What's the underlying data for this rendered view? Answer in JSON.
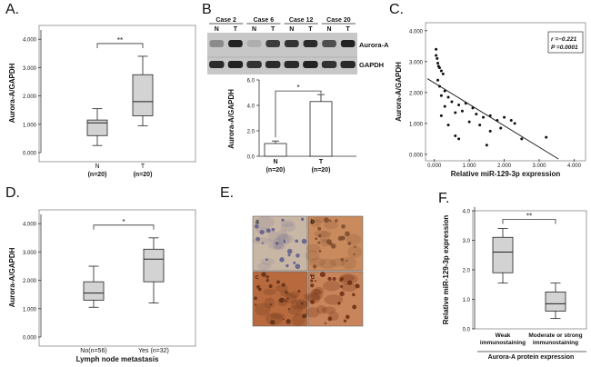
{
  "panels": {
    "A": {
      "letter": "A."
    },
    "B": {
      "letter": "B"
    },
    "C": {
      "letter": "C."
    },
    "D": {
      "letter": "D."
    },
    "E": {
      "letter": "E."
    },
    "F": {
      "letter": "F."
    }
  },
  "chart_data": [
    {
      "id": "A",
      "type": "box",
      "ylabel": "Aurora-A/GAPDH",
      "yticks": [
        "0.000",
        "1.000",
        "2.000",
        "3.000",
        "4.000"
      ],
      "ylim": [
        0,
        4.2
      ],
      "categories": [
        "N",
        "T"
      ],
      "category_sub": [
        "(n=20)",
        "(n=20)"
      ],
      "boxes": [
        {
          "min": 0.25,
          "q1": 0.6,
          "median": 1.05,
          "q3": 1.15,
          "max": 1.55
        },
        {
          "min": 0.95,
          "q1": 1.3,
          "median": 1.8,
          "q3": 2.75,
          "max": 3.4
        }
      ],
      "significance": "**"
    },
    {
      "id": "B",
      "type": "bar",
      "ylabel": "Aurora-A/GAPDH",
      "yticks": [
        "0.0",
        "2.0",
        "4.0",
        "6.0"
      ],
      "ylim": [
        0,
        6
      ],
      "categories": [
        "N",
        "T"
      ],
      "category_sub": [
        "(n=20)",
        "(n=20)"
      ],
      "values": [
        1.0,
        4.3
      ],
      "errors": [
        0.2,
        0.55
      ],
      "significance": "*"
    },
    {
      "id": "C",
      "type": "scatter",
      "xlabel": "Relative miR-129-3p expression",
      "ylabel": "Aurora-A/GAPDH",
      "xticks": [
        "0.000",
        "1.000",
        "2.000",
        "3.000",
        "4.000"
      ],
      "yticks": [
        "0.000",
        "1.000",
        "2.000",
        "3.000",
        "4.000"
      ],
      "xlim": [
        -0.2,
        4.3
      ],
      "ylim": [
        -0.15,
        4.2
      ],
      "annotation_r": "r =−0.221",
      "annotation_p": "P =0.0001",
      "fit_line": [
        [
          -0.2,
          2.45
        ],
        [
          3.55,
          -0.15
        ]
      ],
      "points": [
        [
          0.05,
          3.4
        ],
        [
          0.05,
          3.2
        ],
        [
          0.08,
          3.1
        ],
        [
          0.1,
          2.95
        ],
        [
          0.12,
          2.85
        ],
        [
          0.15,
          2.8
        ],
        [
          0.2,
          2.7
        ],
        [
          0.25,
          2.6
        ],
        [
          0.1,
          2.4
        ],
        [
          0.15,
          2.2
        ],
        [
          0.3,
          2.05
        ],
        [
          0.2,
          1.9
        ],
        [
          0.4,
          1.85
        ],
        [
          0.5,
          1.7
        ],
        [
          0.3,
          1.55
        ],
        [
          0.7,
          1.6
        ],
        [
          0.9,
          1.65
        ],
        [
          0.6,
          1.35
        ],
        [
          0.8,
          1.4
        ],
        [
          1.1,
          1.5
        ],
        [
          1.2,
          1.3
        ],
        [
          1.4,
          1.2
        ],
        [
          1.6,
          1.25
        ],
        [
          1.8,
          1.1
        ],
        [
          1.0,
          1.05
        ],
        [
          1.3,
          0.95
        ],
        [
          2.0,
          1.2
        ],
        [
          2.2,
          1.1
        ],
        [
          2.3,
          1.0
        ],
        [
          1.6,
          0.75
        ],
        [
          0.2,
          1.25
        ],
        [
          0.6,
          0.6
        ],
        [
          0.7,
          0.5
        ],
        [
          1.5,
          0.3
        ],
        [
          2.5,
          0.5
        ],
        [
          3.2,
          0.55
        ],
        [
          1.9,
          0.85
        ],
        [
          0.4,
          0.95
        ]
      ]
    },
    {
      "id": "D",
      "type": "box",
      "xlabel": "Lymph node metastasis",
      "ylabel": "Aurora-A/GAPDH",
      "yticks": [
        "0.000",
        "1.000",
        "2.000",
        "3.000",
        "4.000"
      ],
      "ylim": [
        0,
        4.2
      ],
      "categories": [
        "No(n=56)",
        "Yes (n=32)"
      ],
      "boxes": [
        {
          "min": 1.05,
          "q1": 1.3,
          "median": 1.55,
          "q3": 1.95,
          "max": 2.5
        },
        {
          "min": 1.2,
          "q1": 1.95,
          "median": 2.75,
          "q3": 3.1,
          "max": 3.5
        }
      ],
      "significance": "*"
    },
    {
      "id": "F",
      "type": "box",
      "xlabel": "Aurora-A protein expression",
      "ylabel": "Relative miR-129-3p expression",
      "yticks": [
        "0.0",
        "1.0",
        "2.0",
        "3.0",
        "4.0"
      ],
      "ylim": [
        0,
        4.0
      ],
      "categories": [
        "Weak\nimmunostaining",
        "Moderate or strong\nimmunostaining"
      ],
      "boxes": [
        {
          "min": 1.55,
          "q1": 1.9,
          "median": 2.6,
          "q3": 3.1,
          "max": 3.4
        },
        {
          "min": 0.35,
          "q1": 0.6,
          "median": 0.85,
          "q3": 1.25,
          "max": 1.55
        }
      ],
      "significance": "**"
    }
  ],
  "blot": {
    "cases": [
      "Case 2",
      "Case 6",
      "Case 12",
      "Case 20"
    ],
    "lane_labels": [
      "N",
      "T"
    ],
    "rows": [
      "Aurora-A",
      "GAPDH"
    ],
    "aurora_intensity": [
      0.35,
      0.95,
      0.15,
      0.8,
      0.85,
      0.9,
      0.7,
      0.95
    ],
    "gapdh_intensity": [
      0.9,
      0.95,
      0.85,
      0.9,
      0.9,
      0.95,
      0.85,
      0.9
    ]
  },
  "ihc": {
    "tiles": [
      {
        "label": "a",
        "bg": "#c9b7a6",
        "nuc": "#5c5a8a",
        "stain": 0.1
      },
      {
        "label": "b",
        "bg": "#c98a5e",
        "nuc": "#7a4a2c",
        "stain": 0.5
      },
      {
        "label": "c",
        "bg": "#b86a3e",
        "nuc": "#5e2e16",
        "stain": 0.75
      },
      {
        "label": "d",
        "bg": "#c8845a",
        "nuc": "#6a2a10",
        "stain": 0.9
      }
    ]
  }
}
